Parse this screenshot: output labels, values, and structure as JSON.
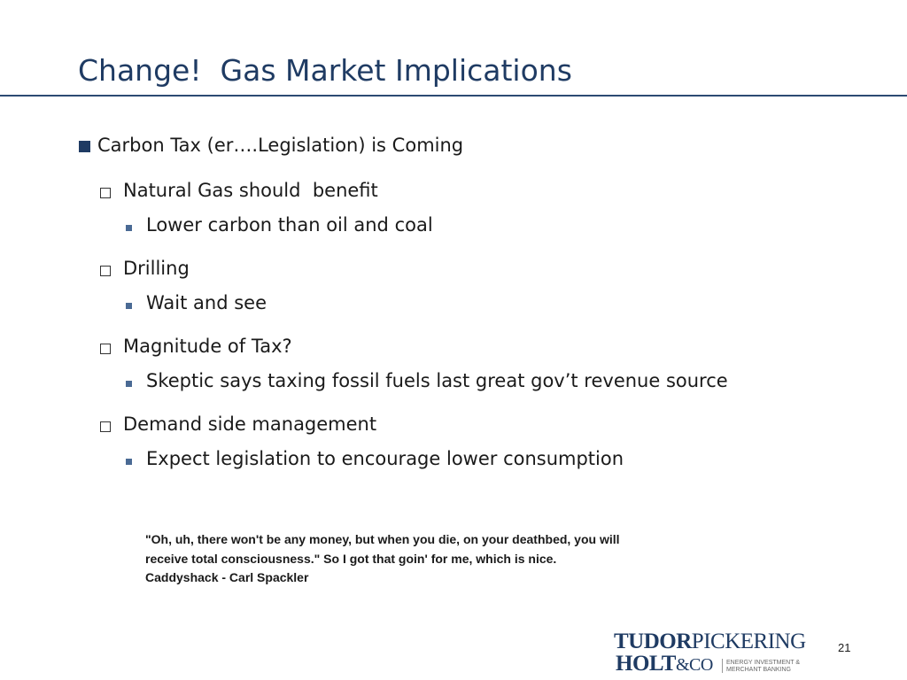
{
  "header": {
    "title": "Change!  Gas Market Implications"
  },
  "bullets": [
    {
      "text": "Carbon Tax (er….Legislation) is Coming",
      "items": [
        {
          "text": "Natural Gas should  benefit",
          "items": [
            "Lower carbon than oil and coal"
          ]
        },
        {
          "text": "Drilling",
          "items": [
            "Wait and see"
          ]
        },
        {
          "text": "Magnitude of Tax?",
          "items": [
            "Skeptic says taxing fossil fuels last great gov’t revenue source"
          ]
        },
        {
          "text": "Demand side management",
          "items": [
            "Expect legislation to encourage lower consumption"
          ]
        }
      ]
    }
  ],
  "quote": {
    "lines": [
      "\"Oh, uh, there won't be any money, but when you die, on your deathbed, you will",
      "receive total consciousness.\" So I got that goin' for me, which is nice.",
      "Caddyshack - Carl Spackler"
    ]
  },
  "footer": {
    "logo": {
      "word1": "TUDOR",
      "word2": "PICKERING",
      "word3": "HOLT",
      "word4": "&CO",
      "tagline1": "ENERGY INVESTMENT &",
      "tagline2": "MERCHANT BANKING"
    },
    "page_number": 21
  }
}
